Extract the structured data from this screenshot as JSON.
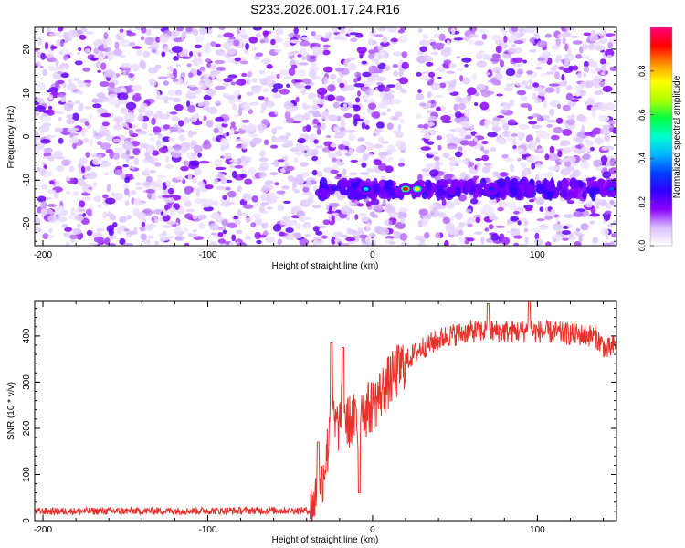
{
  "page_title": "S233.2026.001.17.24.R16",
  "chart_data": [
    {
      "type": "heatmap",
      "title": "S233.2026.001.17.24.R16",
      "xlabel": "Height of straight line (km)",
      "ylabel": "Frequency (Hz)",
      "xlim": [
        -205,
        148
      ],
      "ylim": [
        -25,
        25
      ],
      "xticks": [
        -200,
        -100,
        0,
        100
      ],
      "yticks": [
        -20,
        -10,
        0,
        10,
        20
      ],
      "colorbar": {
        "label": "Normalized spectral amplitude",
        "range": [
          0,
          1
        ],
        "ticks": [
          "0.0",
          "0.2",
          "0.4",
          "0.6",
          "0.8"
        ],
        "colors": [
          "#ffffff",
          "#d9bfff",
          "#8a00ff",
          "#3300ff",
          "#0040ff",
          "#00b4ff",
          "#00ffd0",
          "#00ff40",
          "#b0ff00",
          "#ffff00",
          "#ff9000",
          "#ff0000",
          "#ff007a"
        ]
      },
      "signal_band": {
        "frequency": -12,
        "x_start": -35,
        "x_end": 148,
        "strong_points": [
          {
            "x": -4,
            "y": -12,
            "value": 0.45
          },
          {
            "x": 20,
            "y": -12,
            "value": 0.9
          },
          {
            "x": 27,
            "y": -12,
            "value": 0.75
          },
          {
            "x": 72,
            "y": -12,
            "value": 0.3
          },
          {
            "x": 145,
            "y": -12,
            "value": 0.35
          }
        ]
      },
      "gap": {
        "x_start": 20,
        "x_end": 28
      }
    },
    {
      "type": "line",
      "xlabel": "Height of straight line (km)",
      "ylabel": "SNR (10 * v/v)",
      "xlim": [
        -205,
        148
      ],
      "ylim": [
        0,
        475
      ],
      "xticks": [
        -200,
        -100,
        0,
        100
      ],
      "yticks": [
        0,
        100,
        200,
        300,
        400
      ],
      "color": "#e8312a",
      "series": [
        {
          "name": "SNR",
          "anchors": [
            {
              "x": -205,
              "y": 20
            },
            {
              "x": -38,
              "y": 22
            },
            {
              "x": -32,
              "y": 60
            },
            {
              "x": -25,
              "y": 200
            },
            {
              "x": -10,
              "y": 220
            },
            {
              "x": 0,
              "y": 250
            },
            {
              "x": 10,
              "y": 300
            },
            {
              "x": 20,
              "y": 345
            },
            {
              "x": 30,
              "y": 375
            },
            {
              "x": 45,
              "y": 400
            },
            {
              "x": 60,
              "y": 410
            },
            {
              "x": 100,
              "y": 410
            },
            {
              "x": 135,
              "y": 400
            },
            {
              "x": 142,
              "y": 370
            },
            {
              "x": 148,
              "y": 380
            }
          ],
          "noise_amplitude": 10,
          "spikes": [
            {
              "x": -33,
              "y": 170
            },
            {
              "x": -25,
              "y": 385
            },
            {
              "x": -18,
              "y": 375
            },
            {
              "x": -7,
              "y": 300
            },
            {
              "x": -8,
              "y": 60
            },
            {
              "x": 70,
              "y": 470
            },
            {
              "x": 95,
              "y": 475
            }
          ]
        }
      ]
    }
  ]
}
